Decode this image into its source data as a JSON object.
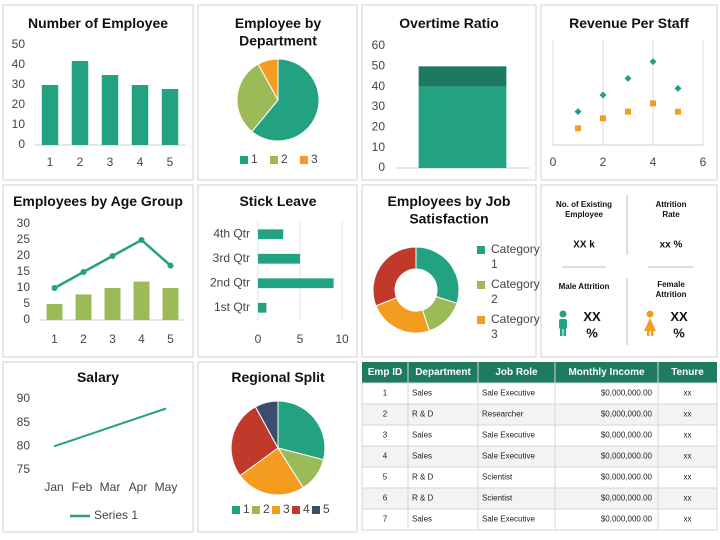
{
  "chart_data": [
    {
      "type": "bar",
      "title": "Number of Employee",
      "categories": [
        "1",
        "2",
        "3",
        "4",
        "5"
      ],
      "values": [
        30,
        42,
        35,
        30,
        28
      ],
      "color": "#22a281",
      "ylim": [
        0,
        50
      ],
      "yticks": [
        0,
        10,
        20,
        30,
        40,
        50
      ]
    },
    {
      "type": "pie",
      "title": "Employee by Department",
      "categories": [
        "1",
        "2",
        "3"
      ],
      "values": [
        61,
        31,
        8
      ],
      "colors": [
        "#22a281",
        "#9bbb59",
        "#f39c1f"
      ],
      "legend": "bottom"
    },
    {
      "type": "bar",
      "title": "Overtime Ratio",
      "stacked": true,
      "categories": [
        null
      ],
      "series": [
        {
          "color": "#22a281",
          "values": [
            40
          ]
        },
        {
          "color": "#1c7a61",
          "values": [
            10
          ]
        }
      ],
      "ylim": [
        0,
        60
      ],
      "yticks": [
        0,
        10,
        20,
        30,
        40,
        50,
        60
      ]
    },
    {
      "type": "scatter",
      "title": "Revenue Per Staff",
      "x": [
        1,
        2,
        3,
        4,
        5
      ],
      "series": [
        {
          "color": "#22a281",
          "marker": "diamond",
          "values": [
            2,
            3,
            4,
            5,
            3.4
          ]
        },
        {
          "color": "#f39c1f",
          "marker": "square",
          "values": [
            1,
            1.6,
            2,
            2.5,
            2
          ]
        }
      ],
      "xlim": [
        0,
        6
      ],
      "xticks": [
        0,
        2,
        4,
        6
      ],
      "ylim": [
        0,
        6
      ],
      "grid": true
    },
    {
      "type": "bar",
      "title": "Employees by Age Group",
      "categories": [
        "1",
        "2",
        "3",
        "4",
        "5"
      ],
      "series": [
        {
          "type": "bar",
          "color": "#9bbb59",
          "values": [
            5,
            8,
            10,
            12,
            10
          ]
        },
        {
          "type": "line",
          "color": "#22a281",
          "values": [
            10,
            15,
            20,
            25,
            17
          ]
        }
      ],
      "ylim": [
        0,
        30
      ],
      "yticks": [
        0,
        5,
        10,
        15,
        20,
        25,
        30
      ]
    },
    {
      "type": "bar",
      "orientation": "horizontal",
      "title": "Stick Leave",
      "categories": [
        "1st Qtr",
        "2nd Qtr",
        "3rd Qtr",
        "4th Qtr"
      ],
      "values": [
        1,
        9,
        5,
        3
      ],
      "color": "#22a281",
      "xlim": [
        0,
        10
      ],
      "xticks": [
        0,
        5,
        10
      ],
      "grid": true
    },
    {
      "type": "doughnut",
      "title": "Employees by Job Satisfaction",
      "categories": [
        "Category 1",
        "Category 2",
        "Category 3",
        null
      ],
      "values": [
        30,
        15,
        24,
        31
      ],
      "colors": [
        "#22a281",
        "#9bbb59",
        "#f39c1f",
        "#c0392b"
      ],
      "legend": "right"
    },
    {
      "type": "line",
      "title": "Salary",
      "categories": [
        "Jan",
        "Feb",
        "Mar",
        "Apr",
        "May"
      ],
      "series": [
        {
          "name": "Series 1",
          "color": "#22a281",
          "values": [
            80,
            82,
            84,
            86,
            88
          ]
        }
      ],
      "ylim": [
        75,
        90
      ],
      "yticks": [
        75,
        80,
        85,
        90
      ],
      "legend": "bottom"
    },
    {
      "type": "pie",
      "title": "Regional Split",
      "categories": [
        "1",
        "2",
        "3",
        "4",
        "5"
      ],
      "values": [
        29,
        12,
        24,
        27,
        8
      ],
      "colors": [
        "#22a281",
        "#9bbb59",
        "#f39c1f",
        "#c0392b",
        "#3c4d6b"
      ],
      "legend": "bottom"
    }
  ],
  "kpi": {
    "existing_label": "No. of Existing Employee",
    "existing_value": "XX k",
    "attrition_label": "Attrition Rate",
    "attrition_value": "xx %",
    "male_label": "Male Attrition",
    "male_value": "XX %",
    "female_label": "Female Attrition",
    "female_value": "XX %"
  },
  "table": {
    "header": [
      "Emp ID",
      "Department",
      "Job Role",
      "Monthly Income",
      "Tenure"
    ],
    "rows": [
      [
        1,
        "Sales",
        "Sale Executive",
        "$0,000,000.00",
        "xx"
      ],
      [
        2,
        "R & D",
        "Researcher",
        "$0,000,000.00",
        "xx"
      ],
      [
        3,
        "Sales",
        "Sale Executive",
        "$0,000,000.00",
        "xx"
      ],
      [
        4,
        "Sales",
        "Sale Executive",
        "$0,000,000.00",
        "xx"
      ],
      [
        5,
        "R & D",
        "Scientist",
        "$0,000,000.00",
        "xx"
      ],
      [
        6,
        "R & D",
        "Scientist",
        "$0,000,000.00",
        "xx"
      ],
      [
        7,
        "Sales",
        "Sale Executive",
        "$0,000,000.00",
        "xx"
      ]
    ]
  }
}
